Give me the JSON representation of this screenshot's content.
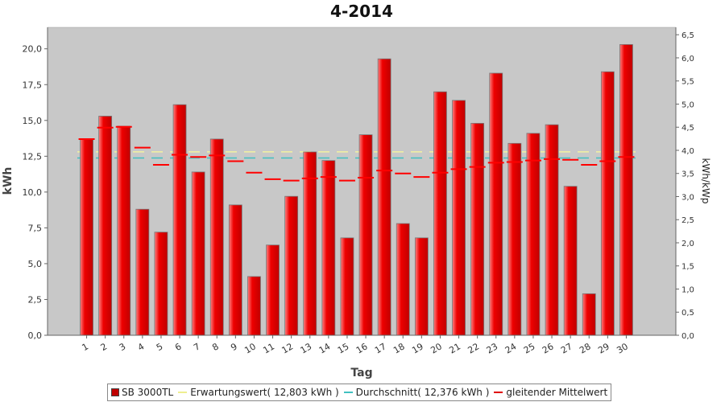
{
  "chart_data": {
    "type": "bar",
    "title": "4-2014",
    "xlabel": "Tag",
    "ylabel": "kWh",
    "ylabel_right": "kWh/kWp",
    "ylim": [
      0,
      21.5
    ],
    "ylim_right": [
      0,
      6.66
    ],
    "y_ticks": [
      "0,0",
      "2,5",
      "5,0",
      "7,5",
      "10,0",
      "12,5",
      "15,0",
      "17,5",
      "20,0"
    ],
    "y_tick_values": [
      0,
      2.5,
      5,
      7.5,
      10,
      12.5,
      15,
      17.5,
      20
    ],
    "y_right_ticks": [
      "0,0",
      "0,5",
      "1,0",
      "1,5",
      "2,0",
      "2,5",
      "3,0",
      "3,5",
      "4,0",
      "4,5",
      "5,0",
      "5,5",
      "6,0",
      "6,5"
    ],
    "y_right_tick_values": [
      0,
      0.5,
      1,
      1.5,
      2,
      2.5,
      3,
      3.5,
      4,
      4.5,
      5,
      5.5,
      6,
      6.5
    ],
    "categories": [
      "1",
      "2",
      "3",
      "4",
      "5",
      "6",
      "7",
      "8",
      "9",
      "10",
      "11",
      "12",
      "13",
      "14",
      "15",
      "16",
      "17",
      "18",
      "19",
      "20",
      "21",
      "22",
      "23",
      "24",
      "25",
      "26",
      "27",
      "28",
      "29",
      "30"
    ],
    "grid": false,
    "legend_position": "bottom",
    "series": [
      {
        "name": "SB 3000TL",
        "type": "bar",
        "color": "#e00000",
        "values": [
          13.7,
          15.3,
          14.6,
          8.8,
          7.2,
          16.1,
          11.4,
          13.7,
          9.1,
          4.1,
          6.3,
          9.7,
          12.8,
          12.2,
          6.8,
          14.0,
          19.3,
          7.8,
          6.8,
          17.0,
          16.4,
          14.8,
          18.3,
          13.4,
          14.1,
          14.7,
          10.4,
          2.9,
          18.4,
          20.3
        ]
      },
      {
        "name": "gleitender Mittelwert",
        "type": "step",
        "color": "#ff0000",
        "values": [
          13.7,
          14.5,
          14.55,
          13.1,
          11.9,
          12.6,
          12.45,
          12.55,
          12.15,
          11.35,
          10.9,
          10.8,
          10.95,
          11.05,
          10.8,
          11.0,
          11.5,
          11.3,
          11.05,
          11.35,
          11.6,
          11.75,
          12.05,
          12.1,
          12.2,
          12.3,
          12.25,
          11.9,
          12.15,
          12.45
        ]
      },
      {
        "name": "Erwartungswert( 12,803 kWh )",
        "type": "hline",
        "color": "#f2f2a0",
        "value": 12.803
      },
      {
        "name": "Durchschnitt( 12,376 kWh )",
        "type": "hline",
        "color": "#40c0c0",
        "value": 12.376
      }
    ]
  }
}
